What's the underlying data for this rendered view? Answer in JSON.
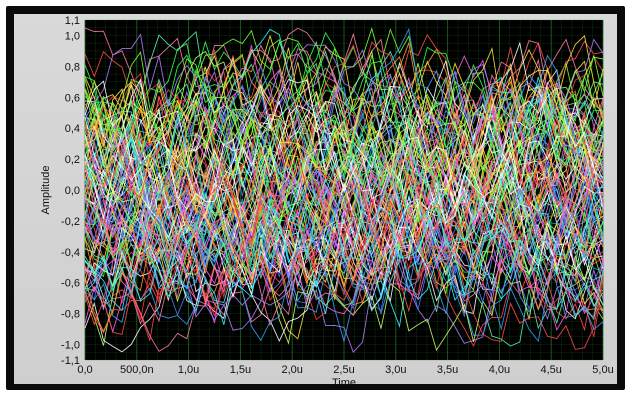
{
  "chart_data": {
    "type": "line",
    "title": "",
    "xlabel": "Time",
    "ylabel": "Amplitude",
    "xlim": [
      0,
      5.0
    ],
    "xunit": "µs",
    "ylim": [
      -1.1,
      1.1
    ],
    "x_ticks": [
      "0,0",
      "500,0n",
      "1,0u",
      "1,5u",
      "2,0u",
      "2,5u",
      "3,0u",
      "3,5u",
      "4,0u",
      "4,5u",
      "5,0u"
    ],
    "y_ticks": [
      "1,1",
      "1,0",
      "0,8",
      "0,6",
      "0,4",
      "0,2",
      "0,0",
      "-0,2",
      "-0,4",
      "-0,6",
      "-0,8",
      "-1,0",
      "-1,1"
    ],
    "grid": true,
    "plot_background": "#000000",
    "grid_color": "#1f6b1f",
    "series_style": "dense overlay of many random noise traces in varied bright colors",
    "series_count_estimate": 120,
    "palette": [
      "#ff3b3b",
      "#ffffff",
      "#39ff5a",
      "#3aa0ff",
      "#ff5cf0",
      "#ffe23a",
      "#37f5ff",
      "#ff9a2b",
      "#b07bff",
      "#7dff3a",
      "#ff78a8",
      "#4a7bff",
      "#c8ff6a",
      "#ffffff",
      "#ff4d4d",
      "#5cf2b0"
    ]
  }
}
